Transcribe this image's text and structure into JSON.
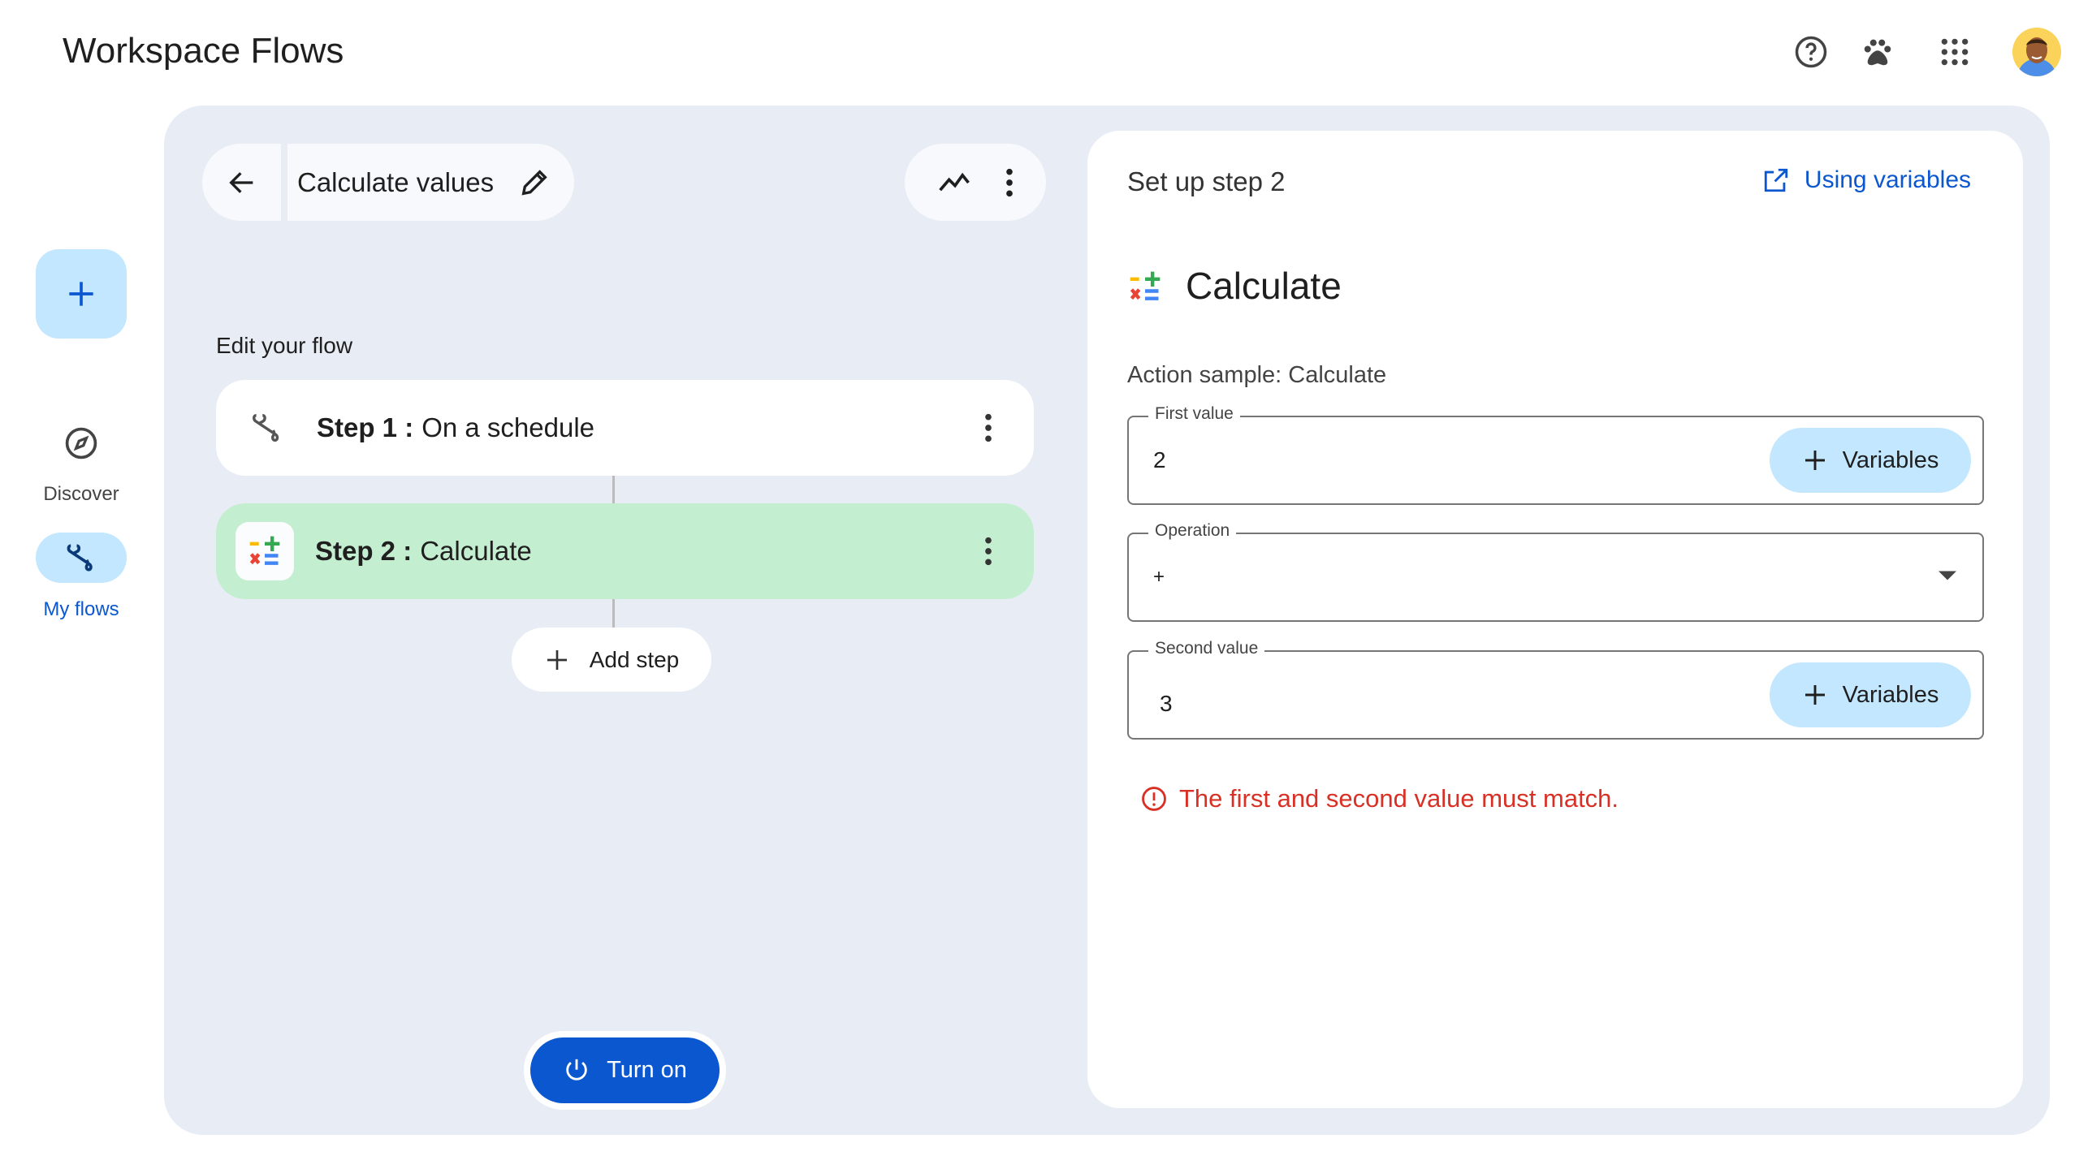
{
  "app": {
    "title": "Workspace Flows"
  },
  "header": {
    "icons": [
      "help-icon",
      "paw-icon",
      "apps-grid-icon",
      "avatar"
    ]
  },
  "rail": {
    "create_icon": "plus-icon",
    "items": [
      {
        "label": "Discover",
        "icon": "compass-icon"
      },
      {
        "label": "My flows",
        "icon": "flows-icon",
        "active": true
      }
    ]
  },
  "flow": {
    "title": "Calculate values",
    "section_label": "Edit your flow",
    "steps": [
      {
        "prefix": "Step 1 :",
        "name": "On a schedule",
        "icon": "schedule-flow-icon"
      },
      {
        "prefix": "Step 2 :",
        "name": "Calculate",
        "icon": "calculate-icon",
        "selected": true
      }
    ],
    "add_step": "Add step",
    "turn_on": "Turn on"
  },
  "setup": {
    "heading": "Set up step 2",
    "link": "Using variables",
    "action_title": "Calculate",
    "action_sample": "Action sample: Calculate",
    "fields": [
      {
        "label": "First value",
        "value": "2",
        "button": "Variables"
      },
      {
        "label": "Operation",
        "value": "+"
      },
      {
        "label": "Second value",
        "value": "3",
        "button": "Variables"
      }
    ],
    "error": "The first and second value must match."
  },
  "colors": {
    "accent": "#0b57d0",
    "panel": "#e8edf5",
    "selected_step": "#c4eed0",
    "chip": "#c2e7ff",
    "error": "#d93025"
  }
}
